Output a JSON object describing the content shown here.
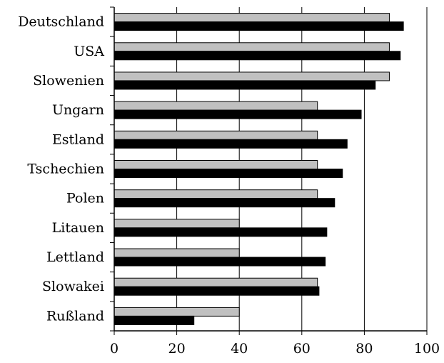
{
  "chart_data": {
    "type": "bar",
    "orientation": "horizontal",
    "title": "",
    "xlabel": "",
    "ylabel": "",
    "categories": [
      "Deutschland",
      "USA",
      "Slowenien",
      "Ungarn",
      "Estland",
      "Tschechien",
      "Polen",
      "Litauen",
      "Lettland",
      "Slowakei",
      "Rußland"
    ],
    "series": [
      {
        "color": "#c0c0c0",
        "values": [
          88,
          88,
          88,
          65,
          65,
          65,
          65,
          40,
          40,
          65,
          40
        ]
      },
      {
        "color": "#000000",
        "values": [
          92.5,
          91.5,
          83.5,
          79,
          74.5,
          73,
          70.5,
          68,
          67.5,
          65.5,
          25.5
        ]
      }
    ],
    "xlim": [
      0,
      100
    ],
    "xticks": [
      "0",
      "20",
      "40",
      "60",
      "80",
      "100"
    ],
    "grid": "vertical lines at major ticks",
    "legend": "none"
  }
}
